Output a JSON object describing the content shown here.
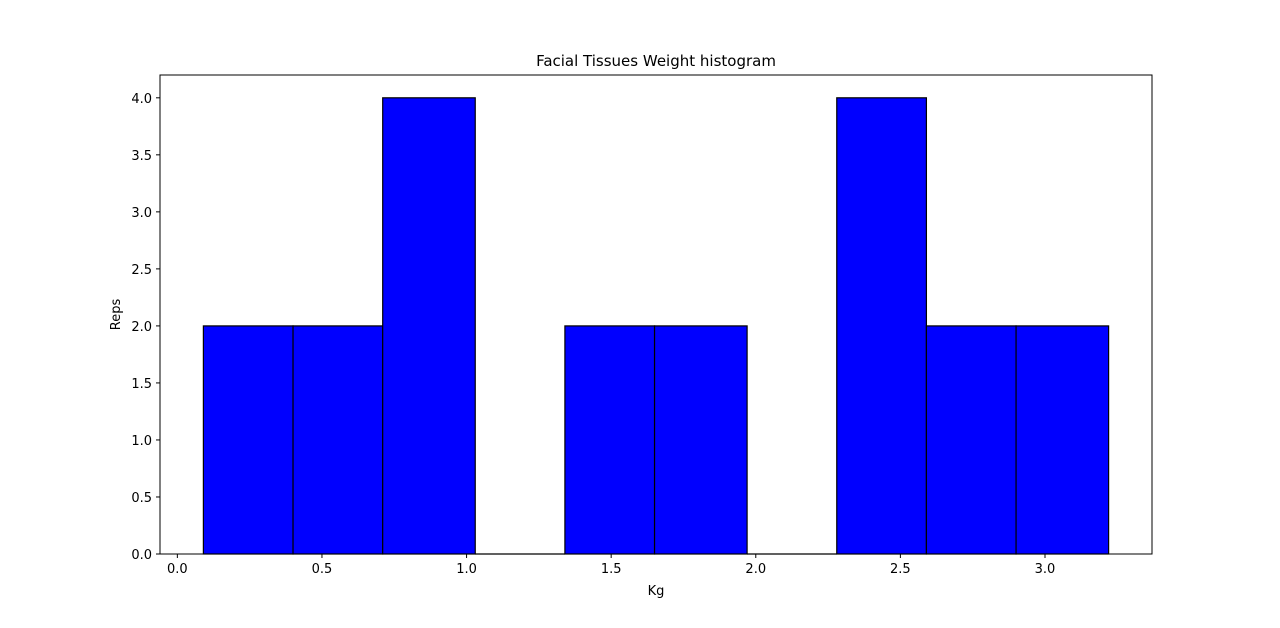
{
  "chart_data": {
    "type": "bar",
    "title": "Facial Tissues Weight histogram",
    "xlabel": "Kg",
    "ylabel": "Reps",
    "xlim": [
      -0.06,
      3.37
    ],
    "ylim": [
      0,
      4.2
    ],
    "xticks": [
      "0.0",
      "0.5",
      "1.0",
      "1.5",
      "2.0",
      "2.5",
      "3.0"
    ],
    "yticks": [
      "0.0",
      "0.5",
      "1.0",
      "1.5",
      "2.0",
      "2.5",
      "3.0",
      "3.5",
      "4.0"
    ],
    "bins": [
      {
        "start": 0.09,
        "end": 0.4,
        "count": 2
      },
      {
        "start": 0.4,
        "end": 0.71,
        "count": 2
      },
      {
        "start": 0.71,
        "end": 1.03,
        "count": 4
      },
      {
        "start": 1.03,
        "end": 1.34,
        "count": 0
      },
      {
        "start": 1.34,
        "end": 1.65,
        "count": 2
      },
      {
        "start": 1.65,
        "end": 1.97,
        "count": 2
      },
      {
        "start": 1.97,
        "end": 2.28,
        "count": 0
      },
      {
        "start": 2.28,
        "end": 2.59,
        "count": 4
      },
      {
        "start": 2.59,
        "end": 2.9,
        "count": 2
      },
      {
        "start": 2.9,
        "end": 3.22,
        "count": 2
      }
    ],
    "bar_color": "#0000ff",
    "edge_color": "#000000",
    "grid": false,
    "legend": "none"
  }
}
